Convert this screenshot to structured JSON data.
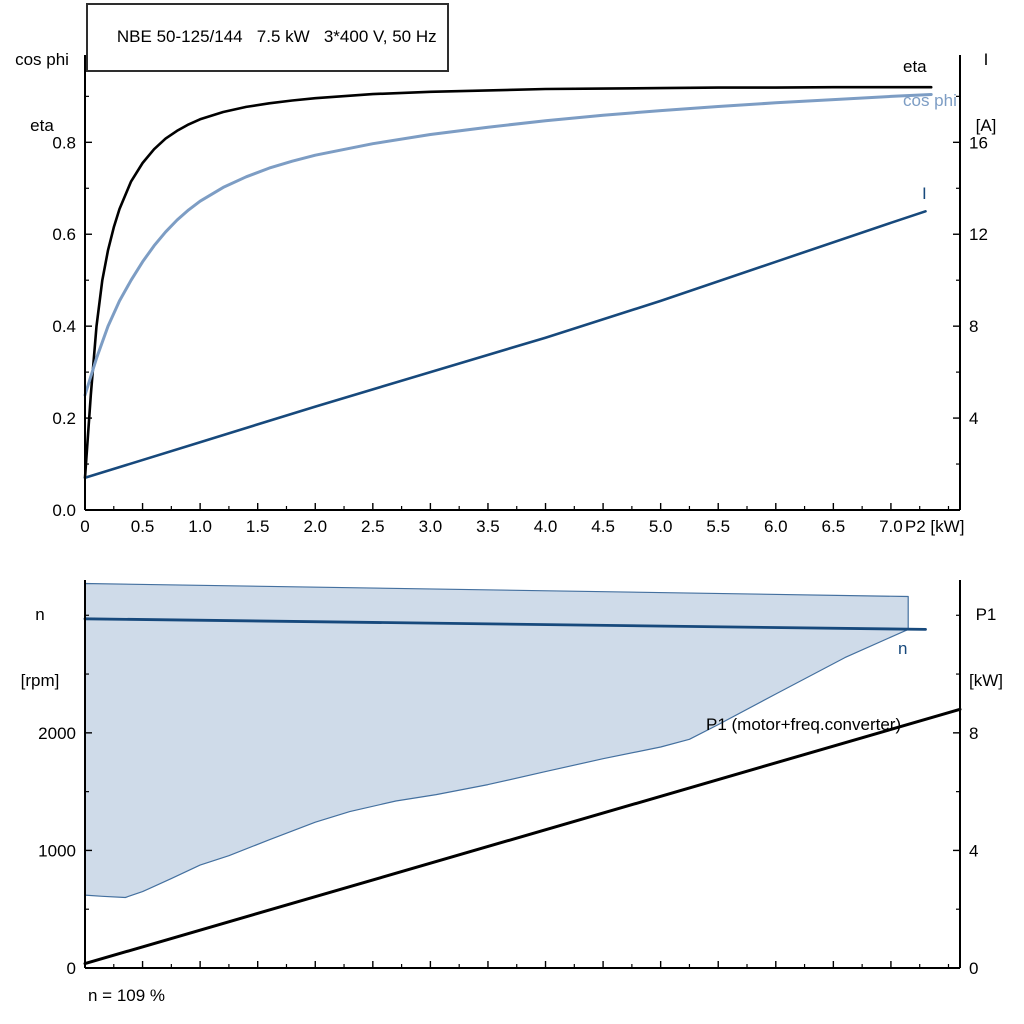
{
  "title": "NBE 50-125/144   7.5 kW   3*400 V, 50 Hz",
  "footnote": "n = 109 %",
  "colors": {
    "black": "#000000",
    "light_blue": "#7d9dc4",
    "dark_blue": "#17497c",
    "envelope_fill": "#cfdbe9",
    "envelope_stroke": "#44709f",
    "axis": "#000000"
  },
  "axis_labels": {
    "top_left": [
      "cos phi",
      "eta"
    ],
    "top_right": [
      "I",
      "[A]"
    ],
    "bottom_left": [
      "n",
      "[rpm]"
    ],
    "bottom_right": [
      "P1",
      "[kW]"
    ]
  },
  "curve_labels": {
    "eta": "eta",
    "cos_phi": "cos phi",
    "current": "I",
    "speed": "n",
    "p1": "P1 (motor+freq.converter)"
  },
  "chart_data": [
    {
      "type": "line",
      "name": "motor-eta-cosphi-current",
      "title": "NBE 50-125/144 7.5 kW 3*400 V, 50 Hz",
      "xlabel": "P2 [kW]",
      "xlabel_at": 7.38,
      "xlim": [
        0,
        7.6
      ],
      "show_x_labels": true,
      "x_minor_step": 0.25,
      "x_ticks": [
        [
          0,
          "0"
        ],
        [
          0.5,
          "0.5"
        ],
        [
          1,
          "1.0"
        ],
        [
          1.5,
          "1.5"
        ],
        [
          2,
          "2.0"
        ],
        [
          2.5,
          "2.5"
        ],
        [
          3,
          "3.0"
        ],
        [
          3.5,
          "3.5"
        ],
        [
          4,
          "4.0"
        ],
        [
          4.5,
          "4.5"
        ],
        [
          5,
          "5.0"
        ],
        [
          5.5,
          "5.5"
        ],
        [
          6,
          "6.0"
        ],
        [
          6.5,
          "6.5"
        ],
        [
          7,
          "7.0"
        ]
      ],
      "left": {
        "label": "cos phi / eta",
        "lim": [
          0,
          0.99
        ],
        "minor_step": 0.1,
        "ticks": [
          [
            0,
            "0.0"
          ],
          [
            0.2,
            "0.2"
          ],
          [
            0.4,
            "0.4"
          ],
          [
            0.6,
            "0.6"
          ],
          [
            0.8,
            "0.8"
          ]
        ]
      },
      "right": {
        "label": "I [A]",
        "lim": [
          0,
          19.8
        ],
        "minor_step": 2,
        "ticks": [
          [
            4,
            "4"
          ],
          [
            8,
            "8"
          ],
          [
            12,
            "12"
          ],
          [
            16,
            "16"
          ]
        ]
      },
      "grid": false,
      "series": [
        {
          "name": "eta",
          "axis": "left",
          "color": "black",
          "width": 2.6,
          "points": [
            [
              0,
              0.07
            ],
            [
              0.05,
              0.25
            ],
            [
              0.1,
              0.4
            ],
            [
              0.15,
              0.5
            ],
            [
              0.2,
              0.565
            ],
            [
              0.25,
              0.615
            ],
            [
              0.3,
              0.655
            ],
            [
              0.4,
              0.715
            ],
            [
              0.5,
              0.755
            ],
            [
              0.6,
              0.785
            ],
            [
              0.7,
              0.808
            ],
            [
              0.8,
              0.825
            ],
            [
              0.9,
              0.839
            ],
            [
              1.0,
              0.85
            ],
            [
              1.2,
              0.866
            ],
            [
              1.4,
              0.877
            ],
            [
              1.6,
              0.885
            ],
            [
              1.8,
              0.891
            ],
            [
              2.0,
              0.896
            ],
            [
              2.5,
              0.905
            ],
            [
              3.0,
              0.91
            ],
            [
              3.5,
              0.913
            ],
            [
              4.0,
              0.916
            ],
            [
              4.5,
              0.917
            ],
            [
              5.0,
              0.918
            ],
            [
              5.5,
              0.919
            ],
            [
              6.0,
              0.919
            ],
            [
              6.5,
              0.92
            ],
            [
              7.0,
              0.92
            ],
            [
              7.35,
              0.92
            ]
          ]
        },
        {
          "name": "cos phi",
          "axis": "left",
          "color": "light_blue",
          "width": 3,
          "points": [
            [
              0,
              0.25
            ],
            [
              0.1,
              0.33
            ],
            [
              0.2,
              0.4
            ],
            [
              0.3,
              0.455
            ],
            [
              0.4,
              0.5
            ],
            [
              0.5,
              0.54
            ],
            [
              0.6,
              0.575
            ],
            [
              0.7,
              0.605
            ],
            [
              0.8,
              0.631
            ],
            [
              0.9,
              0.653
            ],
            [
              1.0,
              0.672
            ],
            [
              1.2,
              0.702
            ],
            [
              1.4,
              0.725
            ],
            [
              1.6,
              0.744
            ],
            [
              1.8,
              0.759
            ],
            [
              2.0,
              0.772
            ],
            [
              2.5,
              0.797
            ],
            [
              3.0,
              0.817
            ],
            [
              3.5,
              0.833
            ],
            [
              4.0,
              0.847
            ],
            [
              4.5,
              0.859
            ],
            [
              5.0,
              0.869
            ],
            [
              5.5,
              0.878
            ],
            [
              6.0,
              0.886
            ],
            [
              6.5,
              0.893
            ],
            [
              7.0,
              0.9
            ],
            [
              7.35,
              0.904
            ]
          ]
        },
        {
          "name": "I",
          "axis": "right",
          "color": "dark_blue",
          "width": 2.6,
          "points": [
            [
              0,
              1.4
            ],
            [
              1.0,
              2.95
            ],
            [
              2.0,
              4.5
            ],
            [
              3.0,
              6.0
            ],
            [
              4.0,
              7.5
            ],
            [
              5.0,
              9.1
            ],
            [
              6.0,
              10.8
            ],
            [
              7.0,
              12.5
            ],
            [
              7.3,
              13.0
            ]
          ]
        }
      ]
    },
    {
      "type": "line",
      "name": "speed-envelope-p1",
      "xlabel": "",
      "xlim": [
        0,
        7.6
      ],
      "show_x_labels": false,
      "x_minor_step": 0.25,
      "x_ticks": [
        [
          0,
          ""
        ],
        [
          0.5,
          ""
        ],
        [
          1,
          ""
        ],
        [
          1.5,
          ""
        ],
        [
          2,
          ""
        ],
        [
          2.5,
          ""
        ],
        [
          3,
          ""
        ],
        [
          3.5,
          ""
        ],
        [
          4,
          ""
        ],
        [
          4.5,
          ""
        ],
        [
          5,
          ""
        ],
        [
          5.5,
          ""
        ],
        [
          6,
          ""
        ],
        [
          6.5,
          ""
        ],
        [
          7,
          ""
        ]
      ],
      "left": {
        "label": "n [rpm]",
        "lim": [
          0,
          3300
        ],
        "minor_step": 500,
        "ticks": [
          [
            0,
            "0"
          ],
          [
            1000,
            "1000"
          ],
          [
            2000,
            "2000"
          ]
        ]
      },
      "right": {
        "label": "P1 [kW]",
        "lim": [
          0,
          13.2
        ],
        "minor_step": 2,
        "ticks": [
          [
            0,
            "0"
          ],
          [
            4,
            "4"
          ],
          [
            8,
            "8"
          ]
        ]
      },
      "grid": false,
      "series": [
        {
          "name": "speed-envelope",
          "axis": "left",
          "color": "envelope_stroke",
          "fill": "envelope_fill",
          "closed": true,
          "width": 1.2,
          "points": [
            [
              0,
              3270
            ],
            [
              7.15,
              3160
            ],
            [
              7.15,
              2880
            ],
            [
              6.6,
              2640
            ],
            [
              6.0,
              2330
            ],
            [
              5.5,
              2070
            ],
            [
              5.25,
              1945
            ],
            [
              5.0,
              1880
            ],
            [
              4.5,
              1780
            ],
            [
              4.0,
              1670
            ],
            [
              3.5,
              1560
            ],
            [
              3.05,
              1475
            ],
            [
              2.7,
              1420
            ],
            [
              2.3,
              1330
            ],
            [
              2.0,
              1240
            ],
            [
              1.6,
              1090
            ],
            [
              1.25,
              955
            ],
            [
              1.0,
              875
            ],
            [
              0.75,
              760
            ],
            [
              0.5,
              650
            ],
            [
              0.35,
              600
            ],
            [
              0.15,
              610
            ],
            [
              0,
              620
            ]
          ]
        },
        {
          "name": "n",
          "axis": "left",
          "color": "dark_blue",
          "width": 2.8,
          "points": [
            [
              0,
              2970
            ],
            [
              7.3,
              2880
            ]
          ]
        },
        {
          "name": "P1",
          "axis": "right",
          "color": "black",
          "width": 3,
          "points": [
            [
              0,
              0.15
            ],
            [
              7.6,
              8.8
            ]
          ]
        }
      ]
    }
  ]
}
